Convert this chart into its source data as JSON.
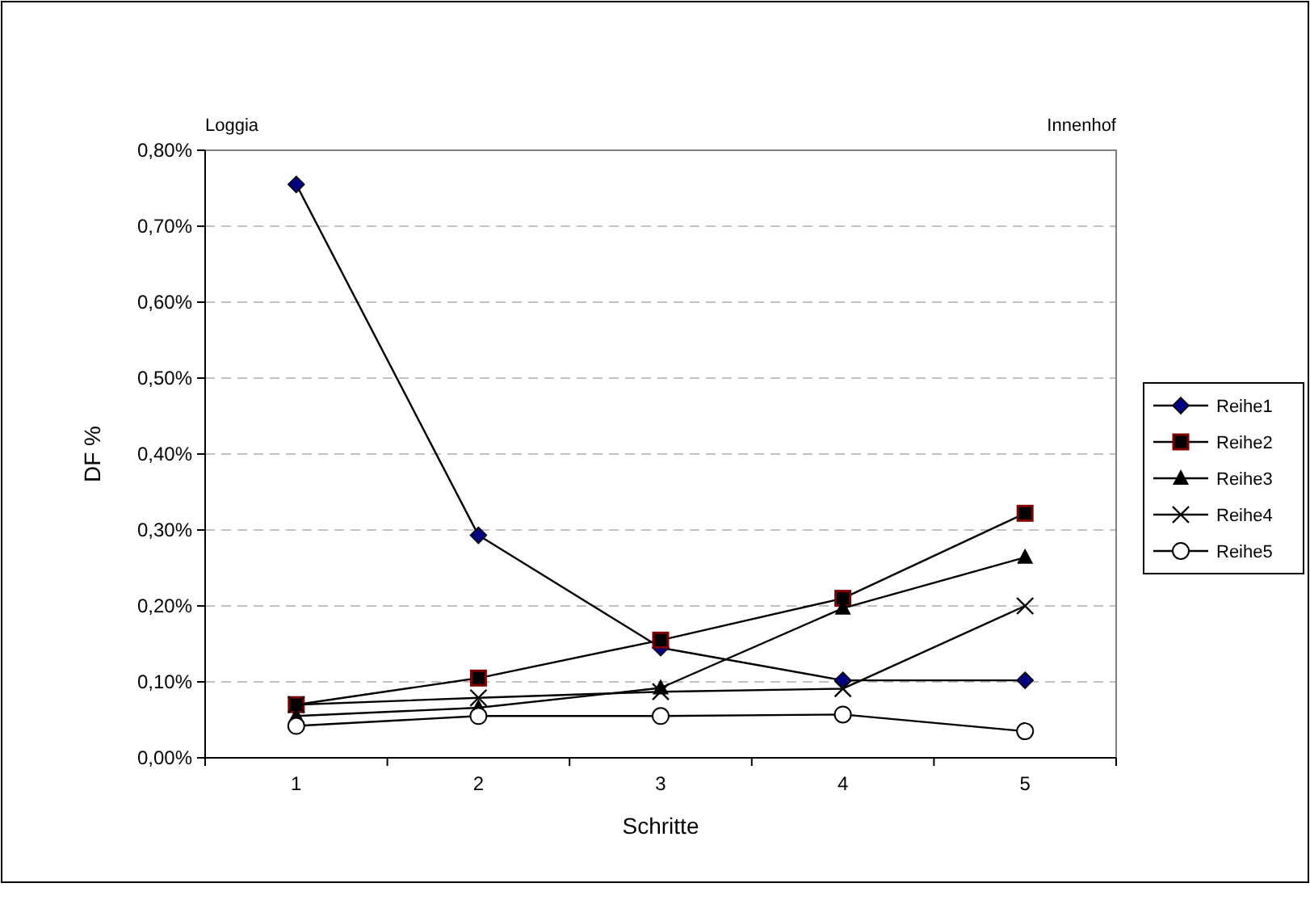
{
  "chart_data": {
    "type": "line",
    "xlabel": "Schritte",
    "ylabel": "DF %",
    "categories": [
      "1",
      "2",
      "3",
      "4",
      "5"
    ],
    "ylim": [
      0,
      0.8
    ],
    "yticks": [
      {
        "value": 0,
        "label": "0,00%"
      },
      {
        "value": 0.1,
        "label": "0,10%"
      },
      {
        "value": 0.2,
        "label": "0,20%"
      },
      {
        "value": 0.3,
        "label": "0,30%"
      },
      {
        "value": 0.4,
        "label": "0,40%"
      },
      {
        "value": 0.5,
        "label": "0,50%"
      },
      {
        "value": 0.6,
        "label": "0,60%"
      },
      {
        "value": 0.7,
        "label": "0,70%"
      },
      {
        "value": 0.8,
        "label": "0,80%"
      }
    ],
    "grid": "y",
    "legend": "right",
    "line_style": "solid",
    "annotations": [
      "Loggia",
      "Innenhof"
    ],
    "series": [
      {
        "name": "Reihe1",
        "color": "#000080",
        "marker": "diamond",
        "values": [
          0.755,
          0.293,
          0.145,
          0.102,
          0.102
        ]
      },
      {
        "name": "Reihe2",
        "color": "#800000",
        "marker": "square",
        "values": [
          0.07,
          0.105,
          0.155,
          0.21,
          0.322
        ]
      },
      {
        "name": "Reihe3",
        "color": "#000000",
        "marker": "triangle",
        "values": [
          0.055,
          0.066,
          0.092,
          0.197,
          0.264
        ]
      },
      {
        "name": "Reihe4",
        "color": "#000000",
        "marker": "cross",
        "values": [
          0.07,
          0.079,
          0.087,
          0.091,
          0.2
        ]
      },
      {
        "name": "Reihe5",
        "color": "#000000",
        "marker": "circle",
        "values": [
          0.042,
          0.055,
          0.055,
          0.057,
          0.035
        ]
      }
    ]
  }
}
